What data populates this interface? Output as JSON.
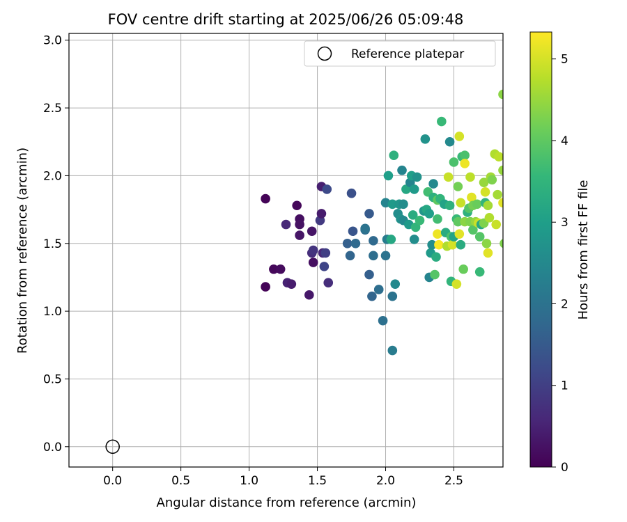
{
  "chart_data": {
    "type": "scatter",
    "title": "FOV centre drift starting at 2025/06/26 05:09:48",
    "xlabel": "Angular distance from reference (arcmin)",
    "ylabel": "Rotation from reference (arcmin)",
    "xlim": [
      -0.32,
      2.86
    ],
    "ylim": [
      -0.15,
      3.05
    ],
    "xticks": [
      "0.0",
      "0.5",
      "1.0",
      "1.5",
      "2.0",
      "2.5"
    ],
    "yticks": [
      "0.0",
      "0.5",
      "1.0",
      "1.5",
      "2.0",
      "2.5",
      "3.0"
    ],
    "grid": true,
    "legend": {
      "placement": "top-right",
      "entries": [
        "Reference platepar"
      ]
    },
    "colorbar": {
      "label": "Hours from first FF file",
      "colormap": "viridis",
      "range": [
        0,
        5.33
      ],
      "ticks": [
        "0",
        "1",
        "2",
        "3",
        "4",
        "5"
      ]
    },
    "reference_point": {
      "x": 0.0,
      "y": 0.0
    },
    "points": [
      [
        1.12,
        1.83,
        0.05
      ],
      [
        1.12,
        1.18,
        0.05
      ],
      [
        1.18,
        1.31,
        0.1
      ],
      [
        1.23,
        1.31,
        0.15
      ],
      [
        1.27,
        1.64,
        0.6
      ],
      [
        1.28,
        1.21,
        0.5
      ],
      [
        1.31,
        1.2,
        0.4
      ],
      [
        1.35,
        1.78,
        0.1
      ],
      [
        1.37,
        1.68,
        0.2
      ],
      [
        1.37,
        1.64,
        0.25
      ],
      [
        1.37,
        1.56,
        0.3
      ],
      [
        1.44,
        1.12,
        0.35
      ],
      [
        1.46,
        1.59,
        0.3
      ],
      [
        1.46,
        1.43,
        0.7
      ],
      [
        1.47,
        1.45,
        0.8
      ],
      [
        1.47,
        1.36,
        0.2
      ],
      [
        1.52,
        1.67,
        0.9
      ],
      [
        1.53,
        1.72,
        0.4
      ],
      [
        1.53,
        1.92,
        0.45
      ],
      [
        1.54,
        1.43,
        0.6
      ],
      [
        1.55,
        1.33,
        1.1
      ],
      [
        1.56,
        1.43,
        1.0
      ],
      [
        1.57,
        1.9,
        1.2
      ],
      [
        1.58,
        1.21,
        0.7
      ],
      [
        1.72,
        1.5,
        1.6
      ],
      [
        1.74,
        1.41,
        1.7
      ],
      [
        1.75,
        1.87,
        1.3
      ],
      [
        1.76,
        1.59,
        1.4
      ],
      [
        1.78,
        1.5,
        1.8
      ],
      [
        1.85,
        1.6,
        1.9
      ],
      [
        1.85,
        1.61,
        2.0
      ],
      [
        1.88,
        1.72,
        1.5
      ],
      [
        1.88,
        1.27,
        1.6
      ],
      [
        1.9,
        1.11,
        1.7
      ],
      [
        1.91,
        1.52,
        1.8
      ],
      [
        1.91,
        1.41,
        1.9
      ],
      [
        1.95,
        1.16,
        1.9
      ],
      [
        1.98,
        0.93,
        1.95
      ],
      [
        2.0,
        1.8,
        2.4
      ],
      [
        2.0,
        1.41,
        2.0
      ],
      [
        2.01,
        1.53,
        2.2
      ],
      [
        2.02,
        2.0,
        3.0
      ],
      [
        2.04,
        1.53,
        3.2
      ],
      [
        2.05,
        0.71,
        2.2
      ],
      [
        2.05,
        1.79,
        2.9
      ],
      [
        2.05,
        1.11,
        2.0
      ],
      [
        2.06,
        2.15,
        3.4
      ],
      [
        2.07,
        1.2,
        2.5
      ],
      [
        2.09,
        1.72,
        2.6
      ],
      [
        2.1,
        1.79,
        2.8
      ],
      [
        2.11,
        1.68,
        2.7
      ],
      [
        2.12,
        2.04,
        2.4
      ],
      [
        2.13,
        1.79,
        2.6
      ],
      [
        2.13,
        1.67,
        2.5
      ],
      [
        2.15,
        1.9,
        3.2
      ],
      [
        2.17,
        1.64,
        2.9
      ],
      [
        2.18,
        1.95,
        2.4
      ],
      [
        2.19,
        2.0,
        3.0
      ],
      [
        2.2,
        1.71,
        3.3
      ],
      [
        2.21,
        1.53,
        2.6
      ],
      [
        2.21,
        1.9,
        2.9
      ],
      [
        2.22,
        1.62,
        3.5
      ],
      [
        2.23,
        1.99,
        2.7
      ],
      [
        2.25,
        1.67,
        3.6
      ],
      [
        2.28,
        1.74,
        2.8
      ],
      [
        2.29,
        2.27,
        2.7
      ],
      [
        2.3,
        1.75,
        3.2
      ],
      [
        2.31,
        1.88,
        3.7
      ],
      [
        2.32,
        1.72,
        3.0
      ],
      [
        2.32,
        1.25,
        2.4
      ],
      [
        2.33,
        1.43,
        2.9
      ],
      [
        2.34,
        1.49,
        2.6
      ],
      [
        2.35,
        1.94,
        2.5
      ],
      [
        2.35,
        1.84,
        3.4
      ],
      [
        2.36,
        1.27,
        3.9
      ],
      [
        2.37,
        1.4,
        3.3
      ],
      [
        2.38,
        1.82,
        4.0
      ],
      [
        2.38,
        1.68,
        3.7
      ],
      [
        2.38,
        1.57,
        5.2
      ],
      [
        2.39,
        1.49,
        5.3
      ],
      [
        2.4,
        1.83,
        3.5
      ],
      [
        2.41,
        2.4,
        3.6
      ],
      [
        2.43,
        1.79,
        3.1
      ],
      [
        2.44,
        1.58,
        3.3
      ],
      [
        2.45,
        1.48,
        4.7
      ],
      [
        2.46,
        1.99,
        4.9
      ],
      [
        2.47,
        1.78,
        3.4
      ],
      [
        2.47,
        2.25,
        2.5
      ],
      [
        2.48,
        1.55,
        3.8
      ],
      [
        2.48,
        1.22,
        3.5
      ],
      [
        2.49,
        1.49,
        5.0
      ],
      [
        2.5,
        2.1,
        3.8
      ],
      [
        2.5,
        1.55,
        3.1
      ],
      [
        2.52,
        1.68,
        3.6
      ],
      [
        2.52,
        1.2,
        5.0
      ],
      [
        2.53,
        1.92,
        4.2
      ],
      [
        2.53,
        1.66,
        4.0
      ],
      [
        2.54,
        1.57,
        5.1
      ],
      [
        2.54,
        2.29,
        5.0
      ],
      [
        2.55,
        1.49,
        3.3
      ],
      [
        2.55,
        1.8,
        4.9
      ],
      [
        2.56,
        2.14,
        3.6
      ],
      [
        2.57,
        1.31,
        4.1
      ],
      [
        2.58,
        1.66,
        4.4
      ],
      [
        2.58,
        2.15,
        3.8
      ],
      [
        2.58,
        2.09,
        5.2
      ],
      [
        2.6,
        1.73,
        3.4
      ],
      [
        2.61,
        1.76,
        3.9
      ],
      [
        2.62,
        1.66,
        4.3
      ],
      [
        2.62,
        1.99,
        4.8
      ],
      [
        2.63,
        1.84,
        5.1
      ],
      [
        2.64,
        1.78,
        4.2
      ],
      [
        2.64,
        1.6,
        3.9
      ],
      [
        2.66,
        1.66,
        4.5
      ],
      [
        2.67,
        1.79,
        4.1
      ],
      [
        2.68,
        1.65,
        4.9
      ],
      [
        2.69,
        1.55,
        3.9
      ],
      [
        2.69,
        1.29,
        3.6
      ],
      [
        2.7,
        1.64,
        3.2
      ],
      [
        2.72,
        1.95,
        4.5
      ],
      [
        2.72,
        1.65,
        4.3
      ],
      [
        2.73,
        1.88,
        5.0
      ],
      [
        2.73,
        1.8,
        3.5
      ],
      [
        2.74,
        1.5,
        4.4
      ],
      [
        2.75,
        1.78,
        4.6
      ],
      [
        2.75,
        1.43,
        5.1
      ],
      [
        2.76,
        1.69,
        4.7
      ],
      [
        2.77,
        1.99,
        4.6
      ],
      [
        2.78,
        1.97,
        4.3
      ],
      [
        2.8,
        2.16,
        4.7
      ],
      [
        2.81,
        1.64,
        4.9
      ],
      [
        2.82,
        1.86,
        4.6
      ],
      [
        2.83,
        2.14,
        4.8
      ],
      [
        2.86,
        2.6,
        4.4
      ],
      [
        2.86,
        2.04,
        4.5
      ],
      [
        2.86,
        1.8,
        5.1
      ],
      [
        2.87,
        1.5,
        4.3
      ]
    ]
  }
}
